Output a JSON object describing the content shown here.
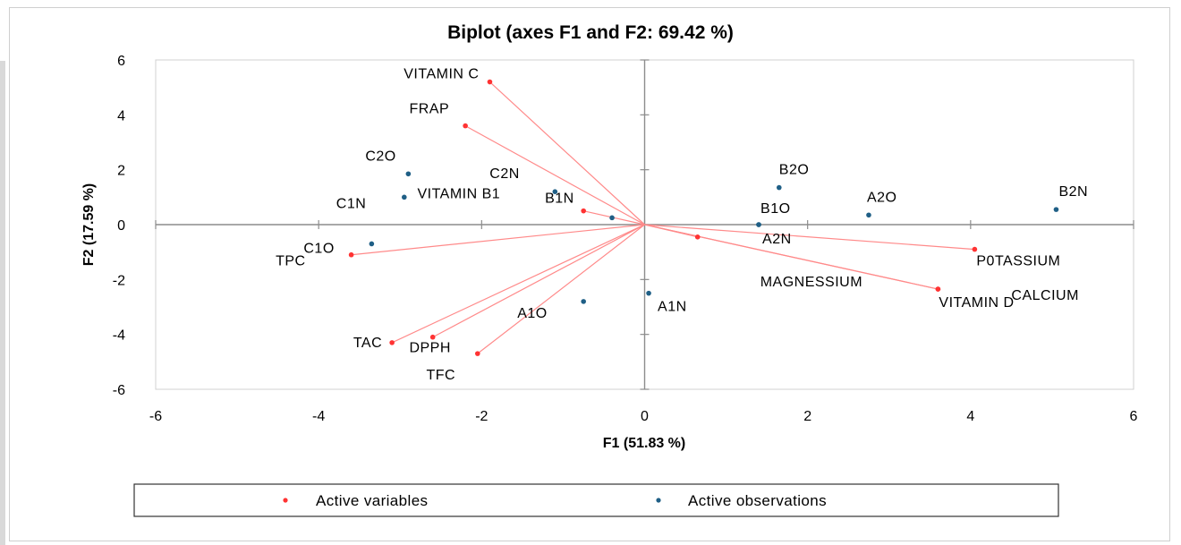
{
  "chart_data": {
    "type": "scatter",
    "title": "Biplot (axes F1 and F2: 69.42 %)",
    "xlabel": "F1 (51.83 %)",
    "ylabel": "F2 (17.59 %)",
    "xlim": [
      -6,
      6
    ],
    "ylim": [
      -6,
      6
    ],
    "xticks": [
      -6,
      -4,
      -2,
      0,
      2,
      4,
      6
    ],
    "yticks": [
      -6,
      -4,
      -2,
      0,
      2,
      4,
      6
    ],
    "legend_position": "bottom",
    "series": [
      {
        "name": "Active variables",
        "color": "#ff3333",
        "style": "vector",
        "points": [
          {
            "label": "VITAMIN C",
            "x": -1.9,
            "y": 5.2
          },
          {
            "label": "FRAP",
            "x": -2.2,
            "y": 3.6
          },
          {
            "label": "VITAMIN B1",
            "x": -0.75,
            "y": 0.5
          },
          {
            "label": "TPC",
            "x": -3.6,
            "y": -1.1
          },
          {
            "label": "TAC",
            "x": -3.1,
            "y": -4.3
          },
          {
            "label": "DPPH",
            "x": -2.6,
            "y": -4.1
          },
          {
            "label": "TFC",
            "x": -2.05,
            "y": -4.7
          },
          {
            "label": "MAGNESSIUM",
            "x": 0.65,
            "y": -0.45
          },
          {
            "label": "P0TASSIUM",
            "x": 4.05,
            "y": -0.9
          },
          {
            "label": "CALCIUM",
            "x": 3.6,
            "y": -2.35
          },
          {
            "label": "VITAMIN D",
            "x": 3.6,
            "y": -2.35
          }
        ]
      },
      {
        "name": "Active observations",
        "color": "#1f5f86",
        "style": "point",
        "points": [
          {
            "label": "C2O",
            "x": -2.9,
            "y": 1.85
          },
          {
            "label": "C1N",
            "x": -2.95,
            "y": 1.0
          },
          {
            "label": "C2N",
            "x": -1.1,
            "y": 1.2
          },
          {
            "label": "B1N",
            "x": -0.4,
            "y": 0.25
          },
          {
            "label": "C1O",
            "x": -3.35,
            "y": -0.7
          },
          {
            "label": "A1O",
            "x": -0.75,
            "y": -2.8
          },
          {
            "label": "A1N",
            "x": 0.05,
            "y": -2.5
          },
          {
            "label": "A2N",
            "x": 1.4,
            "y": 0.0
          },
          {
            "label": "B1O",
            "x": 1.4,
            "y": 0.0
          },
          {
            "label": "B2O",
            "x": 1.65,
            "y": 1.35
          },
          {
            "label": "A2O",
            "x": 2.75,
            "y": 0.35
          },
          {
            "label": "B2N",
            "x": 5.05,
            "y": 0.55
          }
        ]
      }
    ]
  }
}
